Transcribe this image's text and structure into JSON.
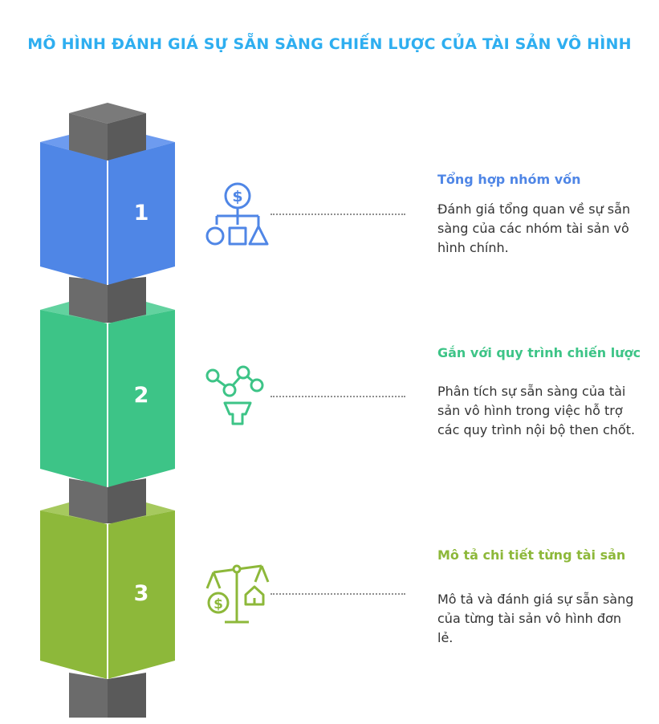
{
  "title": "MÔ HÌNH ĐÁNH GIÁ SỰ SẴN SÀNG CHIẾN LƯỢC CỦA TÀI SẢN VÔ HÌNH",
  "colors": {
    "title": "#2eaef0",
    "connector": "#5f5f5f",
    "block1": "#4f86e6",
    "block2": "#3dc487",
    "block3": "#8db83a"
  },
  "steps": [
    {
      "number": "1",
      "heading": "Tổng hợp nhóm vốn",
      "description": "Đánh giá tổng quan về sự sẵn sàng của các nhóm tài sản vô hình chính.",
      "icon": "dollar-hierarchy-icon",
      "color": "#4f86e6"
    },
    {
      "number": "2",
      "heading": "Gắn với quy trình chiến lược",
      "description": "Phân tích sự sẵn sàng của tài sản vô hình trong việc hỗ trợ các quy trình nội bộ then chốt.",
      "icon": "process-funnel-icon",
      "color": "#3dc487"
    },
    {
      "number": "3",
      "heading": "Mô tả chi tiết từng tài sản",
      "description": "Mô tả và đánh giá sự sẵn sàng của từng tài sản vô hình đơn lẻ.",
      "icon": "balance-scale-icon",
      "color": "#8db83a"
    }
  ]
}
